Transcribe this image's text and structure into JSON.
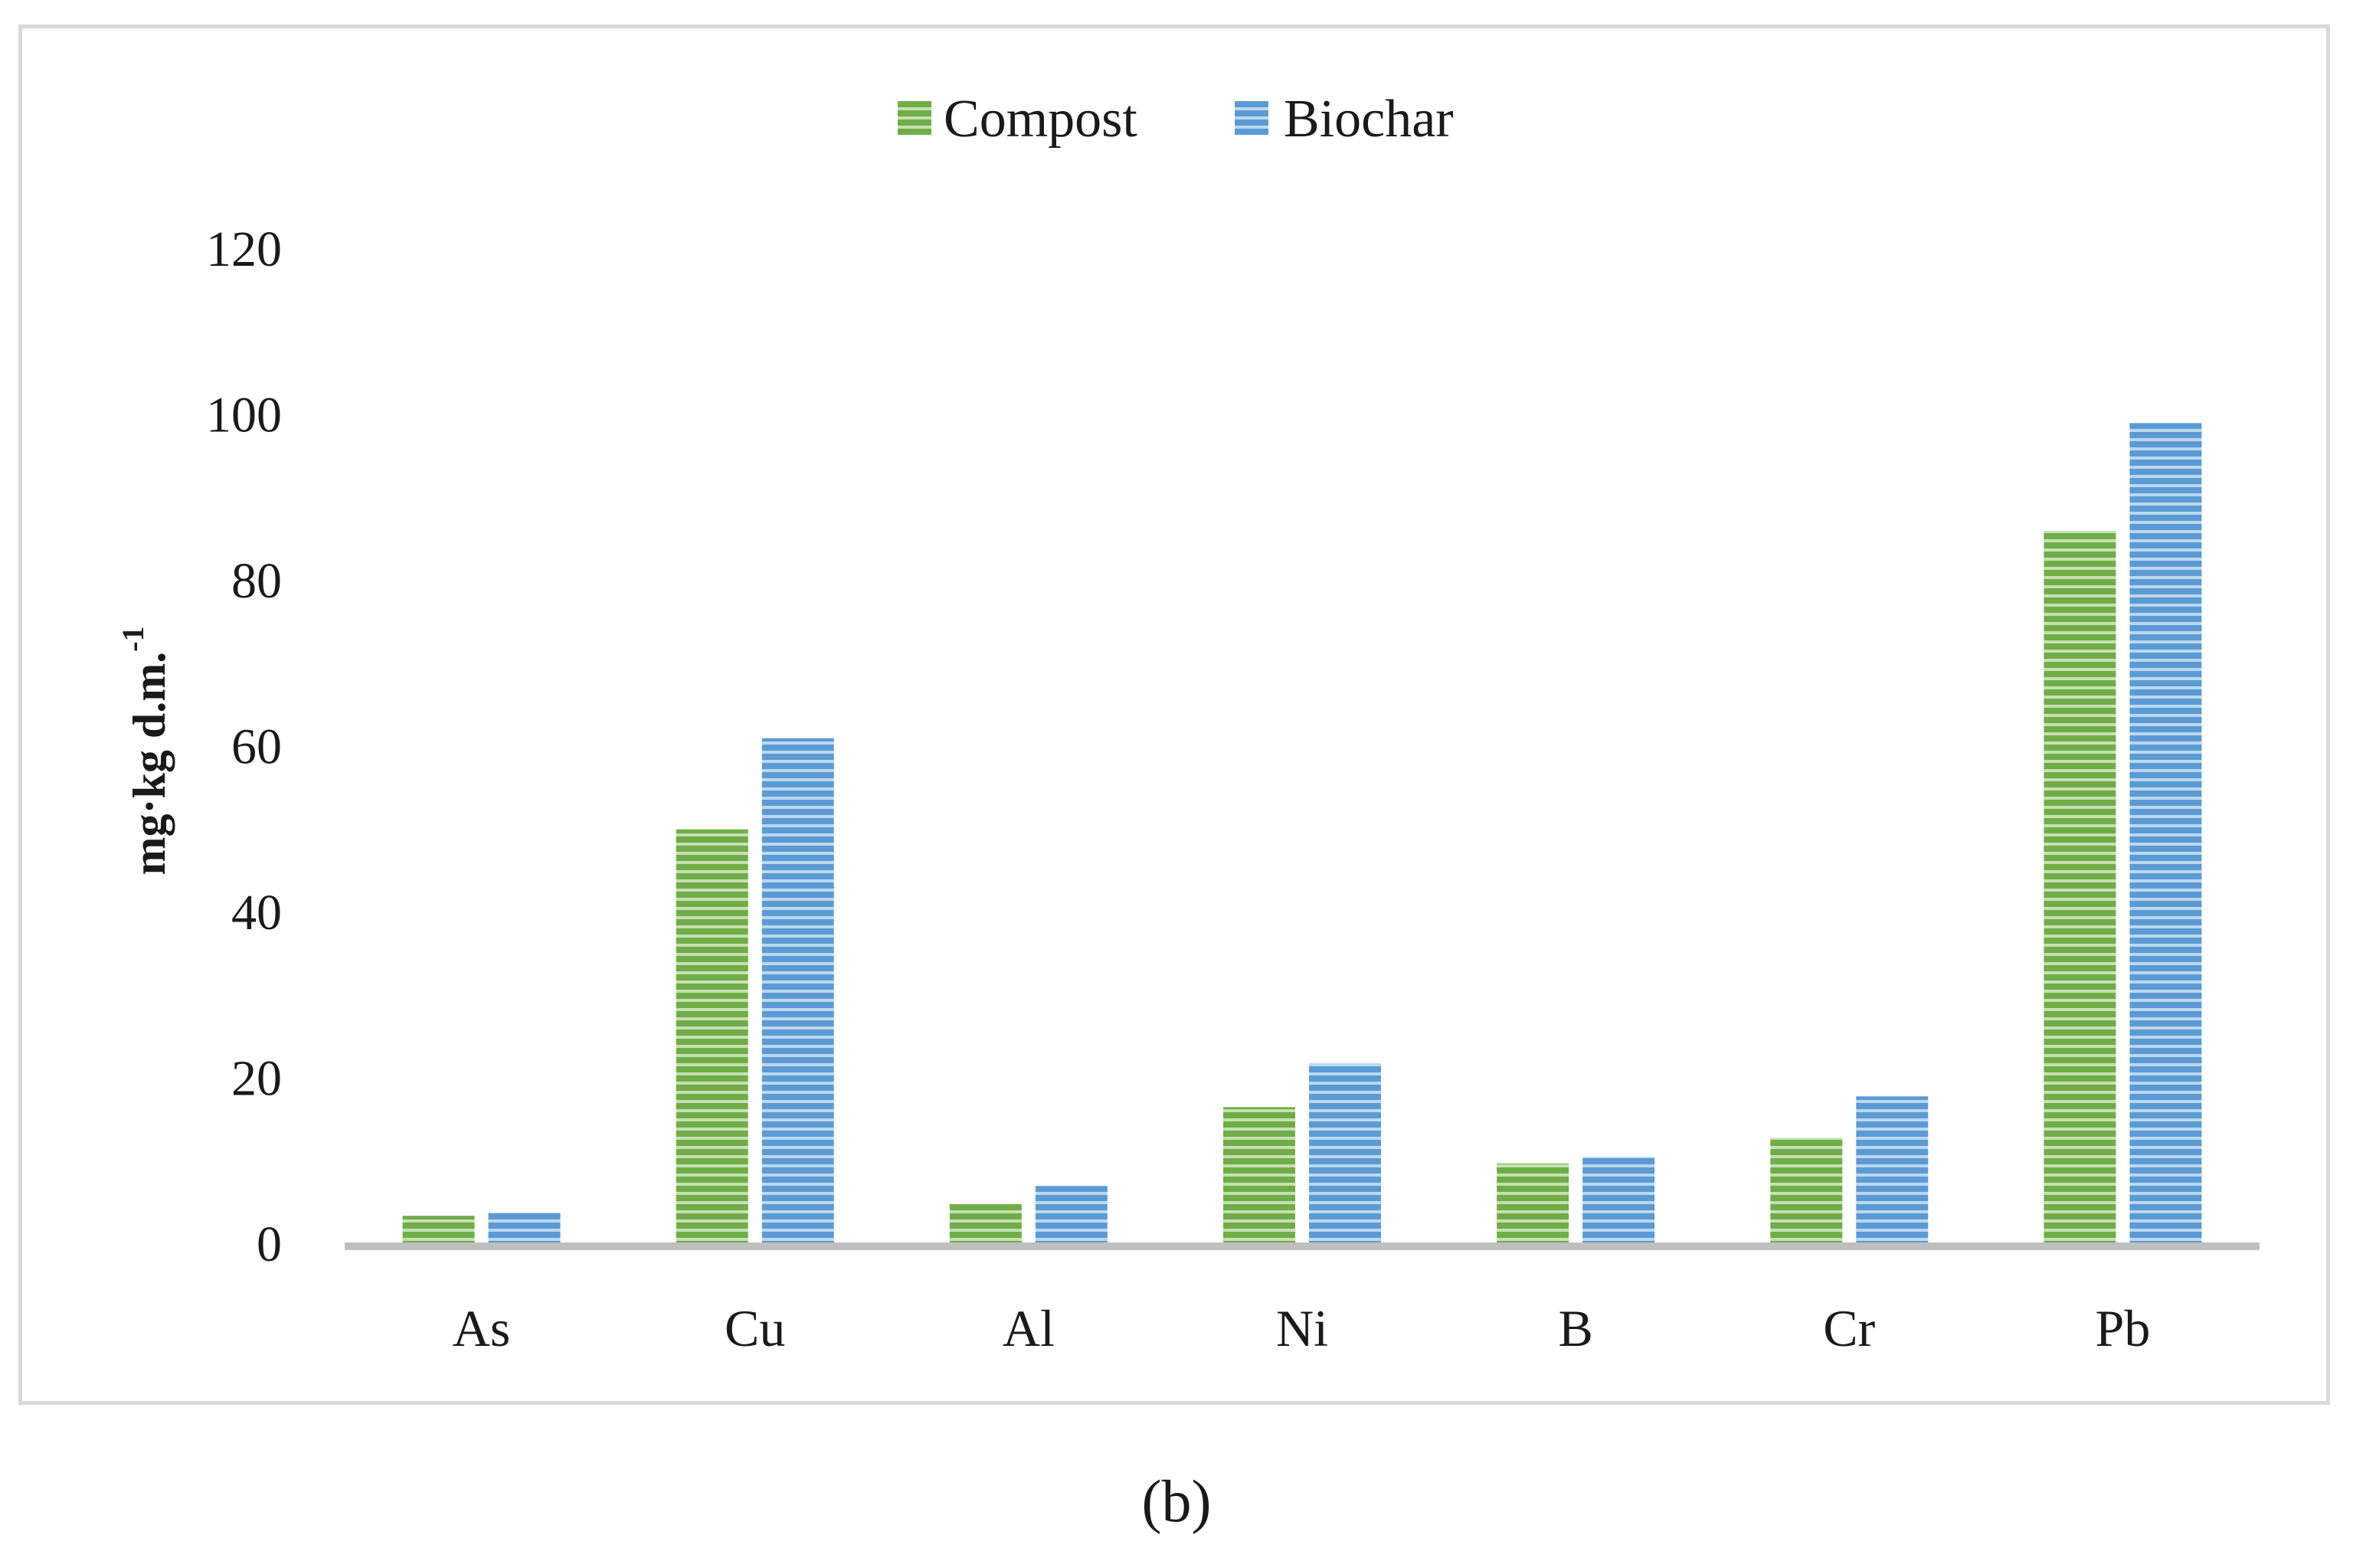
{
  "chart_data": {
    "type": "bar",
    "categories": [
      "As",
      "Cu",
      "Al",
      "Ni",
      "B",
      "Cr",
      "Pb"
    ],
    "series": [
      {
        "name": "Compost",
        "color": "#70ad47",
        "values": [
          3.4,
          50,
          4.8,
          16.5,
          9.7,
          12.8,
          86
        ]
      },
      {
        "name": "Biochar",
        "color": "#5b9bd5",
        "values": [
          3.8,
          61,
          7,
          21.8,
          10.5,
          17.8,
          99
        ]
      }
    ],
    "ylabel": "mg·kg d.m.",
    "ylabel_sup": "-1",
    "xlabel": "",
    "ylim": [
      0,
      120
    ],
    "yticks": [
      0,
      20,
      40,
      60,
      80,
      100,
      120
    ],
    "ytick_labels": [
      "0",
      "20",
      "40",
      "60",
      "80",
      "100",
      "120"
    ],
    "legend_position": "top-center",
    "grid": false,
    "bar_pattern": "horizontal-stripes"
  },
  "caption": "(b)"
}
